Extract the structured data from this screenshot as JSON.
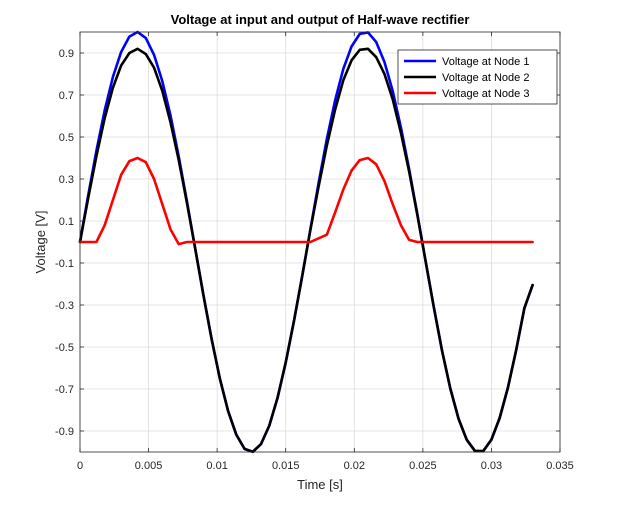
{
  "chart_data": {
    "type": "line",
    "title": "Voltage at input and output of Half-wave rectifier",
    "xlabel": "Time [s]",
    "ylabel": "Voltage [V]",
    "xlim": [
      0,
      0.035
    ],
    "ylim": [
      -1.0,
      1.0
    ],
    "xticks": [
      0,
      0.005,
      0.01,
      0.015,
      0.02,
      0.025,
      0.03,
      0.035
    ],
    "xtick_labels": [
      "0",
      "0.005",
      "0.01",
      "0.015",
      "0.02",
      "0.025",
      "0.03",
      "0.035"
    ],
    "yticks": [
      -0.9,
      -0.7,
      -0.5,
      -0.3,
      -0.1,
      0.1,
      0.3,
      0.5,
      0.7,
      0.9
    ],
    "ytick_labels": [
      "-0.9",
      "-0.7",
      "-0.5",
      "-0.3",
      "-0.1",
      "0.1",
      "0.3",
      "0.5",
      "0.7",
      "0.9"
    ],
    "grid": true,
    "legend_position": "top-right",
    "series": [
      {
        "name": "Voltage  at Node 1",
        "color": "#0000ff",
        "x": [
          0,
          0.0006,
          0.0012,
          0.0018,
          0.0024,
          0.003,
          0.0036,
          0.0042,
          0.0048,
          0.0054,
          0.006,
          0.0066,
          0.0072,
          0.0078,
          0.0084,
          0.009,
          0.0096,
          0.0102,
          0.0108,
          0.0114,
          0.012,
          0.0126,
          0.0132,
          0.0138,
          0.0144,
          0.015,
          0.0156,
          0.0162,
          0.0168,
          0.0174,
          0.018,
          0.0186,
          0.0192,
          0.0198,
          0.0204,
          0.021,
          0.0216,
          0.0222,
          0.0228,
          0.0234,
          0.024,
          0.0246,
          0.0252,
          0.0258,
          0.0264,
          0.027,
          0.0276,
          0.0282,
          0.0288,
          0.0294,
          0.03,
          0.0306,
          0.0312,
          0.0318,
          0.0324,
          0.033
        ],
        "y": [
          0,
          0.223,
          0.436,
          0.627,
          0.786,
          0.905,
          0.978,
          1.0,
          0.971,
          0.891,
          0.766,
          0.602,
          0.407,
          0.193,
          -0.031,
          -0.253,
          -0.463,
          -0.651,
          -0.805,
          -0.918,
          -0.985,
          -0.999,
          -0.962,
          -0.875,
          -0.743,
          -0.574,
          -0.377,
          -0.163,
          0.061,
          0.282,
          0.491,
          0.674,
          0.824,
          0.931,
          0.991,
          0.998,
          0.952,
          0.857,
          0.719,
          0.545,
          0.347,
          0.132,
          -0.091,
          -0.311,
          -0.518,
          -0.697,
          -0.841,
          -0.942,
          -0.995,
          -0.996,
          -0.941,
          -0.838,
          -0.694,
          -0.516,
          -0.316,
          -0.205
        ]
      },
      {
        "name": "Voltage  at Node 2",
        "color": "#000000",
        "x": [
          0,
          0.0006,
          0.0012,
          0.0018,
          0.0024,
          0.003,
          0.0036,
          0.0042,
          0.0048,
          0.0054,
          0.006,
          0.0066,
          0.0072,
          0.0078,
          0.0084,
          0.009,
          0.0096,
          0.0102,
          0.0108,
          0.0114,
          0.012,
          0.0126,
          0.0132,
          0.0138,
          0.0144,
          0.015,
          0.0156,
          0.0162,
          0.0168,
          0.0174,
          0.018,
          0.0186,
          0.0192,
          0.0198,
          0.0204,
          0.021,
          0.0216,
          0.0222,
          0.0228,
          0.0234,
          0.024,
          0.0246,
          0.0252,
          0.0258,
          0.0264,
          0.027,
          0.0276,
          0.0282,
          0.0288,
          0.0294,
          0.03,
          0.0306,
          0.0312,
          0.0318,
          0.0324,
          0.033
        ],
        "y": [
          0,
          0.21,
          0.41,
          0.59,
          0.735,
          0.84,
          0.9,
          0.92,
          0.895,
          0.83,
          0.72,
          0.57,
          0.39,
          0.185,
          -0.031,
          -0.253,
          -0.463,
          -0.651,
          -0.805,
          -0.918,
          -0.985,
          -0.999,
          -0.962,
          -0.875,
          -0.743,
          -0.574,
          -0.377,
          -0.163,
          0.058,
          0.265,
          0.46,
          0.63,
          0.77,
          0.865,
          0.915,
          0.92,
          0.88,
          0.8,
          0.68,
          0.52,
          0.335,
          0.128,
          -0.091,
          -0.311,
          -0.518,
          -0.697,
          -0.841,
          -0.942,
          -0.995,
          -0.996,
          -0.941,
          -0.838,
          -0.694,
          -0.516,
          -0.316,
          -0.205
        ]
      },
      {
        "name": "Voltage  at Node 3",
        "color": "#ff0000",
        "x": [
          0,
          0.0012,
          0.0018,
          0.0024,
          0.003,
          0.0036,
          0.0042,
          0.0048,
          0.0054,
          0.006,
          0.0066,
          0.0072,
          0.0078,
          0.0168,
          0.018,
          0.0186,
          0.0192,
          0.0198,
          0.0204,
          0.021,
          0.0216,
          0.0222,
          0.0228,
          0.0234,
          0.024,
          0.0246,
          0.033
        ],
        "y": [
          0,
          0.0,
          0.08,
          0.2,
          0.32,
          0.385,
          0.4,
          0.38,
          0.3,
          0.18,
          0.06,
          -0.01,
          0.0,
          0.0,
          0.035,
          0.14,
          0.25,
          0.34,
          0.39,
          0.4,
          0.37,
          0.29,
          0.18,
          0.08,
          0.01,
          0.0,
          0.0
        ]
      }
    ]
  }
}
